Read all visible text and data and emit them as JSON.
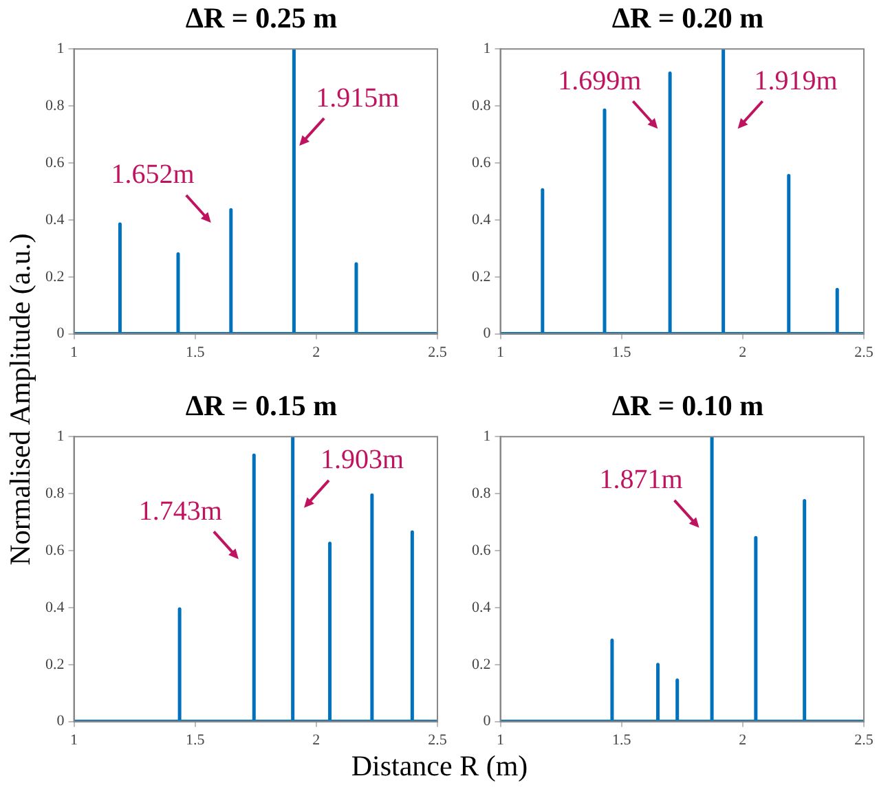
{
  "chart_data": [
    {
      "type": "line",
      "title": "ΔR = 0.25 m",
      "ylabel": "Normalised Amplitude (a.u.)",
      "xlim": [
        1,
        2.5
      ],
      "xticks": [
        1,
        1.5,
        2,
        2.5
      ],
      "ylim": [
        0,
        1
      ],
      "yticks": [
        0,
        0.2,
        0.4,
        0.6,
        0.8,
        1
      ],
      "grid": false,
      "legend": false,
      "marker": "none",
      "series": [
        {
          "color": "#0072bd",
          "x": [
            1,
            1.19,
            1.19,
            1.19,
            1.43,
            1.43,
            1.43,
            1.648,
            1.648,
            1.648,
            1.908,
            1.908,
            1.908,
            2.165,
            2.165,
            2.165,
            2.5
          ],
          "values": [
            0,
            0,
            0.385,
            0,
            0,
            0.28,
            0,
            0,
            0.435,
            0,
            0,
            1,
            0,
            0,
            0.245,
            0,
            0
          ]
        }
      ],
      "annotations": [
        "1.652m",
        "1.915m"
      ]
    },
    {
      "type": "line",
      "title": "ΔR = 0.20 m",
      "xlim": [
        1,
        2.5
      ],
      "xticks": [
        1,
        1.5,
        2,
        2.5
      ],
      "ylim": [
        0,
        1
      ],
      "yticks": [
        0,
        0.2,
        0.4,
        0.6,
        0.8,
        1
      ],
      "grid": false,
      "legend": false,
      "marker": "none",
      "series": [
        {
          "color": "#0072bd",
          "x": [
            1,
            1.174,
            1.174,
            1.174,
            1.43,
            1.43,
            1.43,
            1.7,
            1.7,
            1.7,
            1.92,
            1.92,
            1.92,
            2.19,
            2.19,
            2.19,
            2.39,
            2.39,
            2.39,
            2.5
          ],
          "values": [
            0,
            0,
            0.505,
            0,
            0,
            0.785,
            0,
            0,
            0.915,
            0,
            0,
            1,
            0,
            0,
            0.555,
            0,
            0,
            0.155,
            0,
            0
          ]
        }
      ],
      "annotations": [
        "1.699m",
        "1.919m"
      ]
    },
    {
      "type": "line",
      "title": "ΔR = 0.15 m",
      "xlabel": "Distance R (m)",
      "xlim": [
        1,
        2.5
      ],
      "xticks": [
        1,
        1.5,
        2,
        2.5
      ],
      "ylim": [
        0,
        1
      ],
      "yticks": [
        0,
        0.2,
        0.4,
        0.6,
        0.8,
        1
      ],
      "grid": false,
      "legend": false,
      "marker": "none",
      "series": [
        {
          "color": "#0072bd",
          "x": [
            1,
            1.436,
            1.436,
            1.436,
            1.743,
            1.743,
            1.743,
            1.903,
            1.903,
            1.903,
            2.056,
            2.056,
            2.056,
            2.23,
            2.23,
            2.23,
            2.396,
            2.396,
            2.396,
            2.5
          ],
          "values": [
            0,
            0,
            0.395,
            0,
            0,
            0.935,
            0,
            0,
            1,
            0,
            0,
            0.625,
            0,
            0,
            0.795,
            0,
            0,
            0.665,
            0,
            0
          ]
        }
      ],
      "annotations": [
        "1.743m",
        "1.903m"
      ]
    },
    {
      "type": "line",
      "title": "ΔR = 0.10 m",
      "xlim": [
        1,
        2.5
      ],
      "xticks": [
        1,
        1.5,
        2,
        2.5
      ],
      "ylim": [
        0,
        1
      ],
      "yticks": [
        0,
        0.2,
        0.4,
        0.6,
        0.8,
        1
      ],
      "grid": false,
      "legend": false,
      "marker": "none",
      "series": [
        {
          "color": "#0072bd",
          "x": [
            1,
            1.461,
            1.461,
            1.461,
            1.65,
            1.65,
            1.65,
            1.73,
            1.73,
            1.73,
            1.873,
            1.873,
            1.873,
            2.054,
            2.054,
            2.054,
            2.255,
            2.255,
            2.255,
            2.5
          ],
          "values": [
            0,
            0,
            0.285,
            0,
            0,
            0.2,
            0,
            0,
            0.145,
            0,
            0,
            1,
            0,
            0,
            0.645,
            0,
            0,
            0.775,
            0,
            0
          ]
        }
      ],
      "annotations": [
        "1.871m"
      ]
    }
  ]
}
